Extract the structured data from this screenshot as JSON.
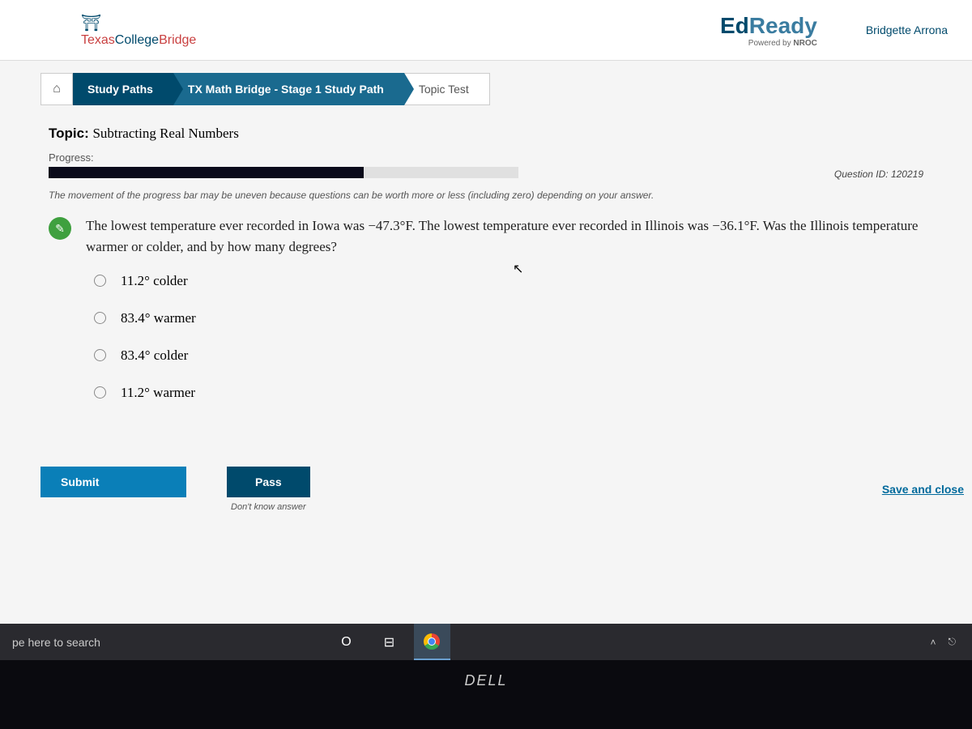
{
  "header": {
    "site_logo_bridge_glyph": "⛩",
    "site_name_texas": "Texas",
    "site_name_college": "College",
    "site_name_bridge": "Bridge",
    "app_name_ed": "Ed",
    "app_name_ready": "Ready",
    "powered_by_prefix": "Powered by ",
    "powered_by_brand": "NROC",
    "user_name": "Bridgette Arrona"
  },
  "breadcrumb": {
    "home_glyph": "⌂",
    "study_paths": "Study Paths",
    "path_name": "TX Math Bridge - Stage 1 Study Path",
    "current": "Topic Test"
  },
  "topic": {
    "label": "Topic:",
    "name": "Subtracting Real Numbers"
  },
  "progress": {
    "label": "Progress:",
    "percent": 67,
    "bar_fill_color": "#0a0a1a",
    "bar_bg_color": "#e0e0e0",
    "note": "The movement of the progress bar may be uneven because questions can be worth more or less (including zero) depending on your answer."
  },
  "question": {
    "id_label": "Question ID:",
    "id": "120219",
    "icon_glyph": "✎",
    "text": "The lowest temperature ever recorded in Iowa was −47.3°F. The lowest temperature ever recorded in Illinois was −36.1°F. Was the Illinois temperature warmer or colder, and by how many degrees?",
    "options": [
      "11.2° colder",
      "83.4° warmer",
      "83.4° colder",
      "11.2° warmer"
    ]
  },
  "actions": {
    "submit": "Submit",
    "pass": "Pass",
    "pass_hint": "Don't know answer",
    "save_close": "Save and close"
  },
  "taskbar": {
    "search_placeholder": "pe here to search",
    "cortana_glyph": "O",
    "taskview_glyph": "⊟",
    "tray_chevron": "˄",
    "tray_bt": "⎋"
  },
  "bezel": {
    "brand": "DELL"
  },
  "colors": {
    "primary_dark": "#004a6c",
    "primary_mid": "#1a6a8f",
    "submit_blue": "#0a7fb8",
    "q_icon_green": "#3fa03f",
    "link_blue": "#006a9c"
  }
}
